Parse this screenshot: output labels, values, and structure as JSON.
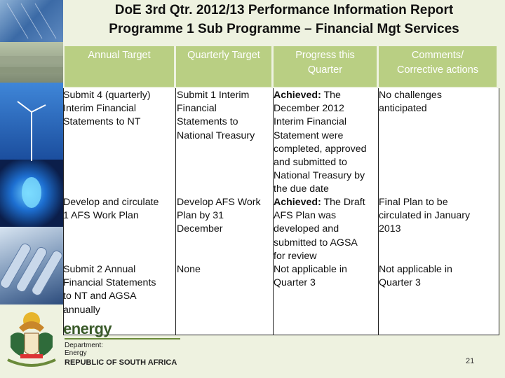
{
  "title": {
    "line1": "DoE 3rd Qtr. 2012/13 Performance Information Report",
    "line2": "Programme 1 Sub Programme – Financial Mgt Services"
  },
  "table": {
    "headers": [
      "Annual Target",
      "Quarterly Target",
      "Progress this\nQuarter",
      "Comments/\nCorrective actions"
    ],
    "rows": [
      {
        "annual": "Submit 4 (quarterly)\nInterim Financial\nStatements to NT",
        "quarterly": "Submit 1 Interim\nFinancial\nStatements to\nNational Treasury",
        "progress_bold": "Achieved:",
        "progress": " The\nDecember 2012\nInterim Financial\nStatement were\ncompleted, approved\nand submitted to\nNational Treasury by\nthe due date",
        "comments": "No challenges\nanticipated"
      },
      {
        "annual": "Develop and circulate\n1 AFS Work Plan",
        "quarterly": "Develop AFS Work\nPlan by 31\nDecember",
        "progress_bold": "Achieved:",
        "progress": " The Draft\nAFS Plan was\ndeveloped and\nsubmitted to AGSA\nfor review",
        "comments": "Final Plan to be\ncirculated in January\n2013"
      },
      {
        "annual": "Submit 2 Annual\nFinancial Statements\nto NT and AGSA\nannually",
        "quarterly": "None",
        "progress_bold": "",
        "progress": "Not applicable in\nQuarter 3",
        "comments": "Not applicable in\nQuarter 3"
      }
    ]
  },
  "footer": {
    "brand": "energy",
    "dept_line1": "Department:",
    "dept_line2": "Energy",
    "country": "REPUBLIC OF SOUTH AFRICA",
    "page_number": "21"
  },
  "colors": {
    "header_bg": "#b9cf83",
    "background": "#eef2e0"
  }
}
